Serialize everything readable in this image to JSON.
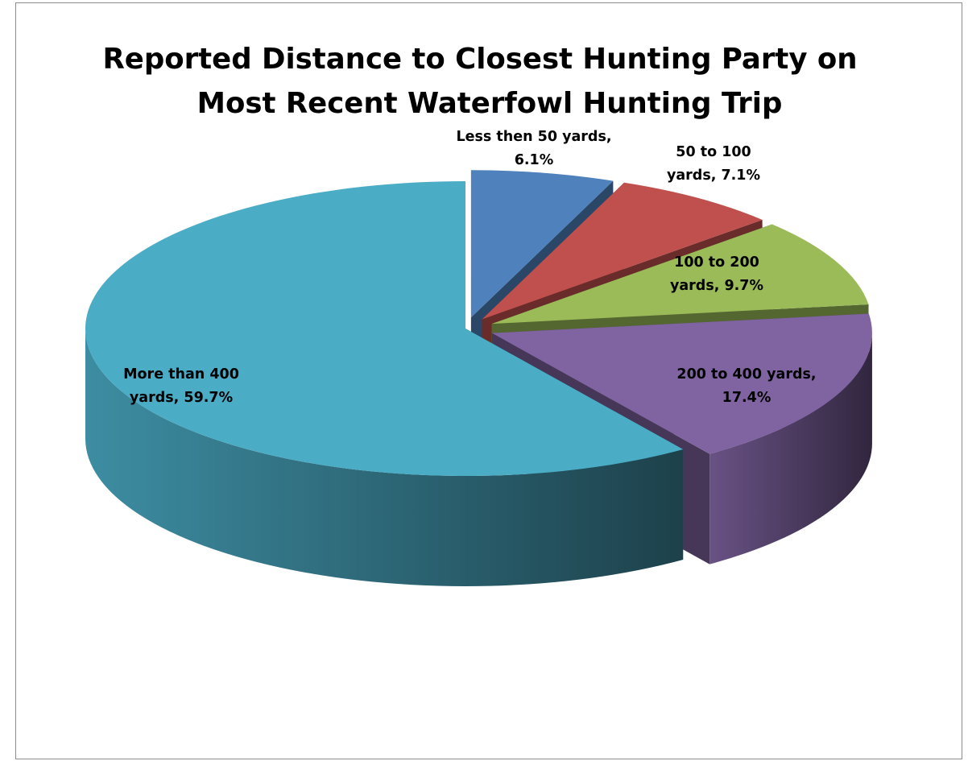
{
  "chart_data": {
    "type": "pie",
    "style": "3d-exploded",
    "title_lines": [
      "Reported Distance to Closest Hunting Party on",
      "Most Recent Waterfowl Hunting Trip"
    ],
    "slices": [
      {
        "name": "Less then 50 yards",
        "value": 6.1,
        "color": "#4f81bd",
        "label_lines": [
          "Less then 50 yards,",
          "6.1%"
        ]
      },
      {
        "name": "50 to 100 yards",
        "value": 7.1,
        "color": "#c0504d",
        "label_lines": [
          "50 to 100",
          "yards, 7.1%"
        ]
      },
      {
        "name": "100 to 200 yards",
        "value": 9.7,
        "color": "#9bbb59",
        "label_lines": [
          "100 to 200",
          "yards, 9.7%"
        ]
      },
      {
        "name": "200 to 400 yards",
        "value": 17.4,
        "color": "#8064a2",
        "label_lines": [
          "200 to 400 yards,",
          "17.4%"
        ]
      },
      {
        "name": "More than 400 yards",
        "value": 59.7,
        "color": "#4bacc6",
        "label_lines": [
          "More than 400",
          "yards, 59.7%"
        ]
      }
    ],
    "legend": "none"
  }
}
